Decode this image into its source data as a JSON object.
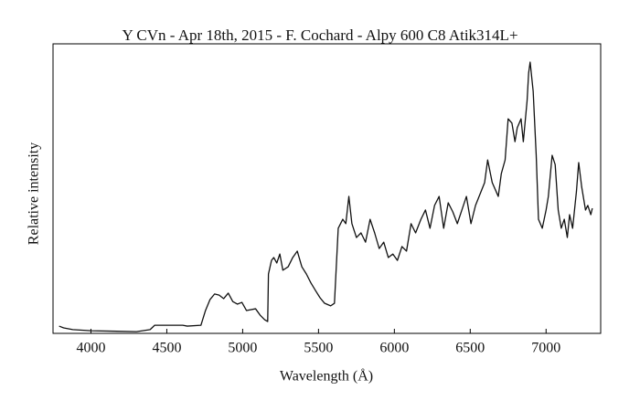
{
  "chart_data": {
    "type": "line",
    "title": "Y CVn - Apr 18th, 2015 - F. Cochard - Alpy 600 C8 Atik314L+",
    "xlabel": "Wavelength (Å)",
    "ylabel": "Relative intensity",
    "xlim": [
      3750,
      7360
    ],
    "xticks": [
      4000,
      4500,
      5000,
      5500,
      6000,
      6500,
      7000
    ],
    "ylim": [
      0,
      1
    ],
    "series": [
      {
        "color": "#111111",
        "x": [
          3790,
          3820,
          3880,
          4000,
          4300,
          4390,
          4420,
          4605,
          4635,
          4725,
          4755,
          4785,
          4815,
          4845,
          4875,
          4905,
          4935,
          4965,
          4995,
          5025,
          5085,
          5115,
          5145,
          5165,
          5170,
          5190,
          5205,
          5225,
          5245,
          5265,
          5300,
          5330,
          5360,
          5390,
          5420,
          5450,
          5480,
          5510,
          5540,
          5580,
          5605,
          5630,
          5660,
          5680,
          5700,
          5720,
          5750,
          5780,
          5810,
          5840,
          5870,
          5900,
          5930,
          5960,
          5990,
          6020,
          6050,
          6080,
          6110,
          6140,
          6175,
          6205,
          6235,
          6265,
          6295,
          6325,
          6355,
          6385,
          6415,
          6445,
          6475,
          6505,
          6535,
          6595,
          6615,
          6645,
          6685,
          6705,
          6730,
          6750,
          6775,
          6795,
          6810,
          6835,
          6850,
          6875,
          6885,
          6895,
          6915,
          6935,
          6950,
          6975,
          7000,
          7015,
          7040,
          7060,
          7080,
          7100,
          7120,
          7140,
          7155,
          7175,
          7200,
          7215,
          7235,
          7260,
          7275,
          7295,
          7305
        ],
        "values": [
          0.025,
          0.019,
          0.013,
          0.009,
          0.006,
          0.013,
          0.028,
          0.028,
          0.025,
          0.028,
          0.079,
          0.117,
          0.136,
          0.132,
          0.12,
          0.139,
          0.11,
          0.101,
          0.107,
          0.079,
          0.085,
          0.063,
          0.047,
          0.041,
          0.205,
          0.252,
          0.262,
          0.243,
          0.274,
          0.218,
          0.23,
          0.262,
          0.284,
          0.23,
          0.205,
          0.174,
          0.148,
          0.123,
          0.104,
          0.095,
          0.104,
          0.363,
          0.394,
          0.379,
          0.473,
          0.379,
          0.331,
          0.347,
          0.315,
          0.394,
          0.347,
          0.293,
          0.315,
          0.262,
          0.274,
          0.252,
          0.3,
          0.284,
          0.379,
          0.347,
          0.394,
          0.426,
          0.363,
          0.442,
          0.473,
          0.363,
          0.451,
          0.42,
          0.379,
          0.426,
          0.473,
          0.379,
          0.442,
          0.521,
          0.599,
          0.521,
          0.473,
          0.552,
          0.599,
          0.741,
          0.726,
          0.662,
          0.71,
          0.741,
          0.662,
          0.804,
          0.899,
          0.937,
          0.836,
          0.615,
          0.394,
          0.363,
          0.426,
          0.473,
          0.615,
          0.583,
          0.426,
          0.363,
          0.394,
          0.331,
          0.41,
          0.363,
          0.489,
          0.59,
          0.505,
          0.426,
          0.442,
          0.41,
          0.432
        ]
      }
    ]
  }
}
